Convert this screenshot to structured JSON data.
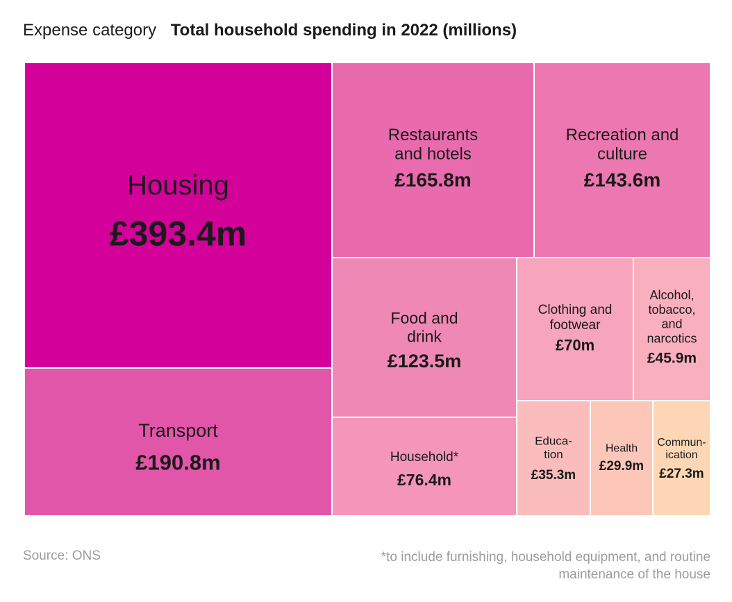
{
  "header": {
    "legend_label": "Expense category",
    "title": "Total household spending in 2022 (millions)"
  },
  "footer": {
    "source": "Source: ONS",
    "note": "*to include furnishing, household equipment, and routine maintenance of the house"
  },
  "chart_data": {
    "type": "treemap",
    "title": "Total household spending in 2022 (millions)",
    "unit": "£ millions",
    "items": [
      {
        "label": "Housing",
        "value_label": "£393.4m",
        "value": 393.4,
        "color": "#d4009a"
      },
      {
        "label": "Transport",
        "value_label": "£190.8m",
        "value": 190.8,
        "color": "#e256a9"
      },
      {
        "label": "Restaurants and hotels",
        "value_label": "£165.8m",
        "value": 165.8,
        "color": "#e96bae"
      },
      {
        "label": "Recreation and culture",
        "value_label": "£143.6m",
        "value": 143.6,
        "color": "#ed78b1"
      },
      {
        "label": "Food and drink",
        "value_label": "£123.5m",
        "value": 123.5,
        "color": "#f088b6"
      },
      {
        "label": "Household*",
        "value_label": "£76.4m",
        "value": 76.4,
        "color": "#f495b9"
      },
      {
        "label": "Clothing and footwear",
        "value_label": "£70m",
        "value": 70,
        "color": "#f7a4bd"
      },
      {
        "label": "Alcohol, tobacco, and narcotics",
        "value_label": "£45.9m",
        "value": 45.9,
        "color": "#f9afbe"
      },
      {
        "label": "Education",
        "value_label": "£35.3m",
        "value": 35.3,
        "color": "#fbbcbd"
      },
      {
        "label": "Health",
        "value_label": "£29.9m",
        "value": 29.9,
        "color": "#fcc6b9"
      },
      {
        "label": "Communication",
        "value_label": "£27.3m",
        "value": 27.3,
        "color": "#fdd7b5"
      }
    ]
  }
}
